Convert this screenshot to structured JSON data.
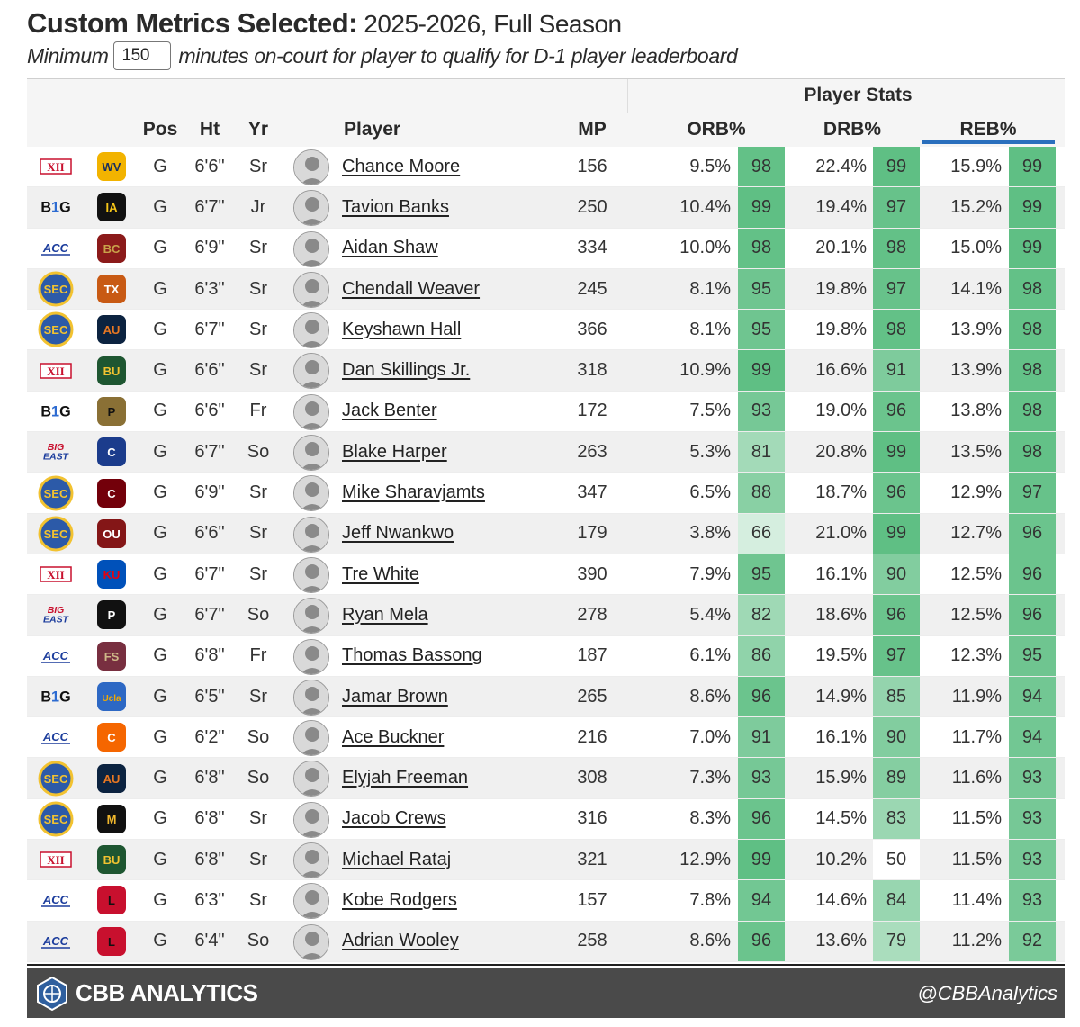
{
  "header": {
    "title_bold": "Custom Metrics Selected:",
    "title_rest": " 2025-2026, Full Season",
    "subtitle_pre": "Minimum",
    "min_minutes": "150",
    "subtitle_post": "minutes on-court for player to qualify for D-1 player leaderboard"
  },
  "table": {
    "group_label": "Player Stats",
    "columns": {
      "pos": "Pos",
      "ht": "Ht",
      "yr": "Yr",
      "player": "Player",
      "mp": "MP",
      "orb": "ORB%",
      "drb": "DRB%",
      "reb": "REB%"
    },
    "sorted_column": "REB%",
    "rows": [
      {
        "conf": "XII",
        "team": "WV",
        "pos": "G",
        "ht": "6'6\"",
        "yr": "Sr",
        "player": "Chance Moore",
        "mp": "156",
        "orb": "9.5%",
        "orb_pct": "98",
        "drb": "22.4%",
        "drb_pct": "99",
        "reb": "15.9%",
        "reb_pct": "99"
      },
      {
        "conf": "B1G",
        "team": "IA",
        "pos": "G",
        "ht": "6'7\"",
        "yr": "Jr",
        "player": "Tavion Banks",
        "mp": "250",
        "orb": "10.4%",
        "orb_pct": "99",
        "drb": "19.4%",
        "drb_pct": "97",
        "reb": "15.2%",
        "reb_pct": "99"
      },
      {
        "conf": "ACC",
        "team": "BC",
        "pos": "G",
        "ht": "6'9\"",
        "yr": "Sr",
        "player": "Aidan Shaw",
        "mp": "334",
        "orb": "10.0%",
        "orb_pct": "98",
        "drb": "20.1%",
        "drb_pct": "98",
        "reb": "15.0%",
        "reb_pct": "99"
      },
      {
        "conf": "SEC",
        "team": "TEX",
        "pos": "G",
        "ht": "6'3\"",
        "yr": "Sr",
        "player": "Chendall Weaver",
        "mp": "245",
        "orb": "8.1%",
        "orb_pct": "95",
        "drb": "19.8%",
        "drb_pct": "97",
        "reb": "14.1%",
        "reb_pct": "98"
      },
      {
        "conf": "SEC",
        "team": "AU",
        "pos": "G",
        "ht": "6'7\"",
        "yr": "Sr",
        "player": "Keyshawn Hall",
        "mp": "366",
        "orb": "8.1%",
        "orb_pct": "95",
        "drb": "19.8%",
        "drb_pct": "98",
        "reb": "13.9%",
        "reb_pct": "98"
      },
      {
        "conf": "XII",
        "team": "BU",
        "pos": "G",
        "ht": "6'6\"",
        "yr": "Sr",
        "player": "Dan Skillings Jr.",
        "mp": "318",
        "orb": "10.9%",
        "orb_pct": "99",
        "drb": "16.6%",
        "drb_pct": "91",
        "reb": "13.9%",
        "reb_pct": "98"
      },
      {
        "conf": "B1G",
        "team": "P",
        "pos": "G",
        "ht": "6'6\"",
        "yr": "Fr",
        "player": "Jack Benter",
        "mp": "172",
        "orb": "7.5%",
        "orb_pct": "93",
        "drb": "19.0%",
        "drb_pct": "96",
        "reb": "13.8%",
        "reb_pct": "98"
      },
      {
        "conf": "BIG EAST",
        "team": "CR",
        "pos": "G",
        "ht": "6'7\"",
        "yr": "So",
        "player": "Blake Harper",
        "mp": "263",
        "orb": "5.3%",
        "orb_pct": "81",
        "drb": "20.8%",
        "drb_pct": "99",
        "reb": "13.5%",
        "reb_pct": "98"
      },
      {
        "conf": "SEC",
        "team": "SC",
        "pos": "G",
        "ht": "6'9\"",
        "yr": "Sr",
        "player": "Mike Sharavjamts",
        "mp": "347",
        "orb": "6.5%",
        "orb_pct": "88",
        "drb": "18.7%",
        "drb_pct": "96",
        "reb": "12.9%",
        "reb_pct": "97"
      },
      {
        "conf": "SEC",
        "team": "OU",
        "pos": "G",
        "ht": "6'6\"",
        "yr": "Sr",
        "player": "Jeff Nwankwo",
        "mp": "179",
        "orb": "3.8%",
        "orb_pct": "66",
        "drb": "21.0%",
        "drb_pct": "99",
        "reb": "12.7%",
        "reb_pct": "96"
      },
      {
        "conf": "XII",
        "team": "KU",
        "pos": "G",
        "ht": "6'7\"",
        "yr": "Sr",
        "player": "Tre White",
        "mp": "390",
        "orb": "7.9%",
        "orb_pct": "95",
        "drb": "16.1%",
        "drb_pct": "90",
        "reb": "12.5%",
        "reb_pct": "96"
      },
      {
        "conf": "BIG EAST",
        "team": "PROV",
        "pos": "G",
        "ht": "6'7\"",
        "yr": "So",
        "player": "Ryan Mela",
        "mp": "278",
        "orb": "5.4%",
        "orb_pct": "82",
        "drb": "18.6%",
        "drb_pct": "96",
        "reb": "12.5%",
        "reb_pct": "96"
      },
      {
        "conf": "ACC",
        "team": "FSU",
        "pos": "G",
        "ht": "6'8\"",
        "yr": "Fr",
        "player": "Thomas Bassong",
        "mp": "187",
        "orb": "6.1%",
        "orb_pct": "86",
        "drb": "19.5%",
        "drb_pct": "97",
        "reb": "12.3%",
        "reb_pct": "95"
      },
      {
        "conf": "B1G",
        "team": "Ucla",
        "pos": "G",
        "ht": "6'5\"",
        "yr": "Sr",
        "player": "Jamar Brown",
        "mp": "265",
        "orb": "8.6%",
        "orb_pct": "96",
        "drb": "14.9%",
        "drb_pct": "85",
        "reb": "11.9%",
        "reb_pct": "94"
      },
      {
        "conf": "ACC",
        "team": "CLEM",
        "pos": "G",
        "ht": "6'2\"",
        "yr": "So",
        "player": "Ace Buckner",
        "mp": "216",
        "orb": "7.0%",
        "orb_pct": "91",
        "drb": "16.1%",
        "drb_pct": "90",
        "reb": "11.7%",
        "reb_pct": "94"
      },
      {
        "conf": "SEC",
        "team": "AU",
        "pos": "G",
        "ht": "6'8\"",
        "yr": "So",
        "player": "Elyjah Freeman",
        "mp": "308",
        "orb": "7.3%",
        "orb_pct": "93",
        "drb": "15.9%",
        "drb_pct": "89",
        "reb": "11.6%",
        "reb_pct": "93"
      },
      {
        "conf": "SEC",
        "team": "MIZ",
        "pos": "G",
        "ht": "6'8\"",
        "yr": "Sr",
        "player": "Jacob Crews",
        "mp": "316",
        "orb": "8.3%",
        "orb_pct": "96",
        "drb": "14.5%",
        "drb_pct": "83",
        "reb": "11.5%",
        "reb_pct": "93"
      },
      {
        "conf": "XII",
        "team": "BU",
        "pos": "G",
        "ht": "6'8\"",
        "yr": "Sr",
        "player": "Michael Rataj",
        "mp": "321",
        "orb": "12.9%",
        "orb_pct": "99",
        "drb": "10.2%",
        "drb_pct": "50",
        "reb": "11.5%",
        "reb_pct": "93"
      },
      {
        "conf": "ACC",
        "team": "LOU",
        "pos": "G",
        "ht": "6'3\"",
        "yr": "Sr",
        "player": "Kobe Rodgers",
        "mp": "157",
        "orb": "7.8%",
        "orb_pct": "94",
        "drb": "14.6%",
        "drb_pct": "84",
        "reb": "11.4%",
        "reb_pct": "93"
      },
      {
        "conf": "ACC",
        "team": "LOU",
        "pos": "G",
        "ht": "6'4\"",
        "yr": "So",
        "player": "Adrian Wooley",
        "mp": "258",
        "orb": "8.6%",
        "orb_pct": "96",
        "drb": "13.6%",
        "drb_pct": "79",
        "reb": "11.2%",
        "reb_pct": "92"
      }
    ]
  },
  "footer": {
    "brand": "CBB ANALYTICS",
    "handle": "@CBBAnalytics"
  },
  "colors": {
    "pct_high": "#5fbf84",
    "pct_low": "#ffffff",
    "sort_underline": "#2a6fbd",
    "footer_bg": "#4a4a4a"
  }
}
